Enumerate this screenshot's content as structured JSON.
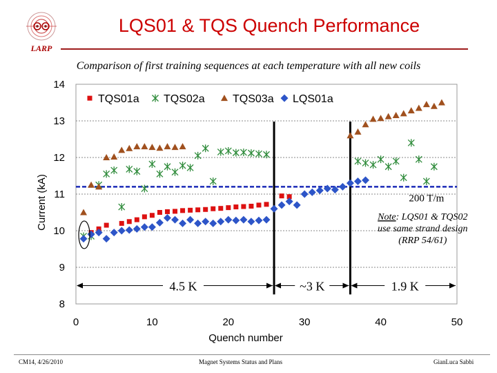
{
  "slide": {
    "title": "LQS01 & TQS Quench Performance",
    "subtitle": "Comparison of first training sequences at each temperature with all new coils",
    "logo_text": "LARP",
    "footer_left": "CM14, 4/26/2010",
    "footer_center": "Magnet Systems Status and Plans",
    "footer_right": "GianLuca Sabbi",
    "title_color": "#cc0000"
  },
  "chart_data": {
    "type": "scatter",
    "xlabel": "Quench number",
    "ylabel": "Current (kA)",
    "xlim": [
      0,
      50
    ],
    "ylim": [
      8,
      14
    ],
    "xticks": [
      "0",
      "10",
      "20",
      "30",
      "40",
      "50"
    ],
    "yticks": [
      "8",
      "9",
      "10",
      "11",
      "12",
      "13",
      "14"
    ],
    "grid": "horizontal",
    "legend_position": "top-left",
    "series": [
      {
        "name": "TQS01a",
        "marker": "square",
        "color": "#dd1111",
        "x": [
          2,
          3,
          4,
          6,
          7,
          8,
          9,
          10,
          11,
          12,
          13,
          14,
          15,
          16,
          17,
          18,
          19,
          20,
          21,
          22,
          23,
          24,
          25,
          27,
          28
        ],
        "y": [
          9.95,
          10.05,
          10.15,
          10.2,
          10.25,
          10.3,
          10.38,
          10.42,
          10.5,
          10.52,
          10.53,
          10.55,
          10.56,
          10.57,
          10.58,
          10.6,
          10.61,
          10.63,
          10.65,
          10.66,
          10.67,
          10.7,
          10.72,
          10.95,
          10.93
        ]
      },
      {
        "name": "TQS02a",
        "marker": "asterisk",
        "color": "#2e8b3a",
        "x": [
          1,
          2,
          3,
          4,
          5,
          6,
          7,
          8,
          9,
          10,
          11,
          12,
          13,
          14,
          15,
          16,
          17,
          18,
          19,
          20,
          21,
          22,
          23,
          24,
          25,
          37,
          38,
          39,
          40,
          41,
          42,
          43,
          44,
          45,
          46,
          47
        ],
        "y": [
          9.85,
          9.85,
          11.25,
          11.55,
          11.65,
          10.65,
          11.68,
          11.62,
          11.15,
          11.82,
          11.55,
          11.75,
          11.6,
          11.78,
          11.72,
          12.05,
          12.25,
          11.35,
          12.15,
          12.18,
          12.13,
          12.14,
          12.12,
          12.1,
          12.08,
          11.9,
          11.85,
          11.8,
          11.95,
          11.75,
          11.9,
          11.45,
          12.4,
          11.95,
          11.35,
          11.75
        ]
      },
      {
        "name": "TQS03a",
        "marker": "triangle",
        "color": "#a0501e",
        "x": [
          1,
          2,
          3,
          4,
          5,
          6,
          7,
          8,
          9,
          10,
          11,
          12,
          13,
          14,
          36,
          37,
          38,
          39,
          40,
          41,
          42,
          43,
          44,
          45,
          46,
          47,
          48
        ],
        "y": [
          10.5,
          11.25,
          11.2,
          12.0,
          12.02,
          12.2,
          12.25,
          12.3,
          12.3,
          12.28,
          12.26,
          12.3,
          12.28,
          12.3,
          12.6,
          12.7,
          12.9,
          13.05,
          13.07,
          13.12,
          13.15,
          13.2,
          13.28,
          13.35,
          13.45,
          13.4,
          13.5
        ]
      },
      {
        "name": "LQS01a",
        "marker": "diamond",
        "color": "#2d55c8",
        "x": [
          1,
          2,
          3,
          4,
          5,
          6,
          7,
          8,
          9,
          10,
          11,
          12,
          13,
          14,
          15,
          16,
          17,
          18,
          19,
          20,
          21,
          22,
          23,
          24,
          25,
          26,
          27,
          28,
          29,
          30,
          31,
          32,
          33,
          34,
          35,
          36,
          37,
          38
        ],
        "y": [
          9.78,
          9.9,
          9.95,
          9.78,
          9.95,
          10.0,
          10.02,
          10.05,
          10.1,
          10.1,
          10.22,
          10.35,
          10.3,
          10.2,
          10.3,
          10.2,
          10.25,
          10.2,
          10.25,
          10.3,
          10.28,
          10.3,
          10.25,
          10.28,
          10.3,
          10.6,
          10.7,
          10.8,
          10.7,
          11.0,
          11.05,
          11.1,
          11.15,
          11.12,
          11.2,
          11.3,
          11.35,
          11.38
        ]
      }
    ],
    "reference_line": {
      "label": "200 T/m",
      "y": 11.2,
      "color": "#1a2ab8"
    },
    "dividers_x": [
      26,
      36
    ],
    "regions": [
      {
        "label": "4.5 K",
        "x_start": 0,
        "x_end": 26
      },
      {
        "label": "~3 K",
        "x_start": 26,
        "x_end": 36
      },
      {
        "label": "1.9 K",
        "x_start": 36,
        "x_end": 50
      }
    ],
    "region_arrow_y": 8.5,
    "note": {
      "label": "Note",
      "text": ": LQS01 & TQS02 use same strand design (RRP 54/61)"
    },
    "circle_highlight": {
      "x": 1,
      "y": 9.85
    }
  }
}
